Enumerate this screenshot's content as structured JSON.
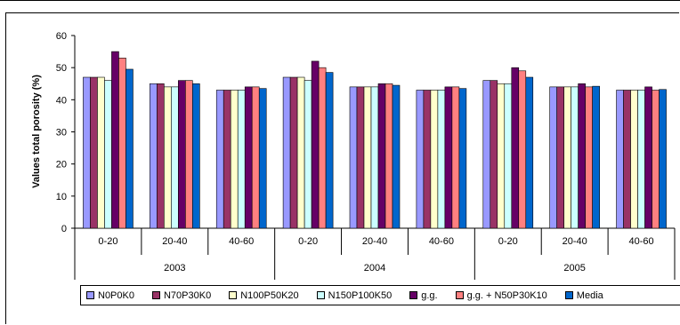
{
  "chart_data": {
    "type": "bar",
    "ylabel": "Values total porosity (%)",
    "ylim": [
      0,
      60
    ],
    "yticks": [
      0,
      10,
      20,
      30,
      40,
      50,
      60
    ],
    "grid": false,
    "legend_position": "bottom",
    "groups": [
      {
        "year": "2003",
        "categories": [
          "0-20",
          "20-40",
          "40-60"
        ]
      },
      {
        "year": "2004",
        "categories": [
          "0-20",
          "20-40",
          "40-60"
        ]
      },
      {
        "year": "2005",
        "categories": [
          "0-20",
          "20-40",
          "40-60"
        ]
      }
    ],
    "categories": [
      "2003 0-20",
      "2003 20-40",
      "2003 40-60",
      "2004 0-20",
      "2004 20-40",
      "2004 40-60",
      "2005 0-20",
      "2005 20-40",
      "2005 40-60"
    ],
    "series": [
      {
        "name": "N0P0K0",
        "color": "#9999ff",
        "values": [
          47,
          45,
          43,
          47,
          44,
          43,
          46,
          44,
          43
        ]
      },
      {
        "name": "N70P30K0",
        "color": "#993366",
        "values": [
          47,
          45,
          43,
          47,
          44,
          43,
          46,
          44,
          43
        ]
      },
      {
        "name": "N100P50K20",
        "color": "#ffffcc",
        "values": [
          47,
          44,
          43,
          47,
          44,
          43,
          45,
          44,
          43
        ]
      },
      {
        "name": "N150P100K50",
        "color": "#ccffff",
        "values": [
          46,
          44,
          43,
          46,
          44,
          43,
          45,
          44,
          43
        ]
      },
      {
        "name": "g.g.",
        "color": "#660066",
        "values": [
          55,
          46,
          44,
          52,
          45,
          44,
          50,
          45,
          44
        ]
      },
      {
        "name": "g.g. + N50P30K10",
        "color": "#ff8080",
        "values": [
          53,
          46,
          44,
          50,
          45,
          44,
          49,
          44,
          43
        ]
      },
      {
        "name": "Media",
        "color": "#0066cc",
        "values": [
          49.5,
          45,
          43.5,
          48.5,
          44.5,
          43.5,
          47,
          44.2,
          43.2
        ]
      }
    ]
  }
}
